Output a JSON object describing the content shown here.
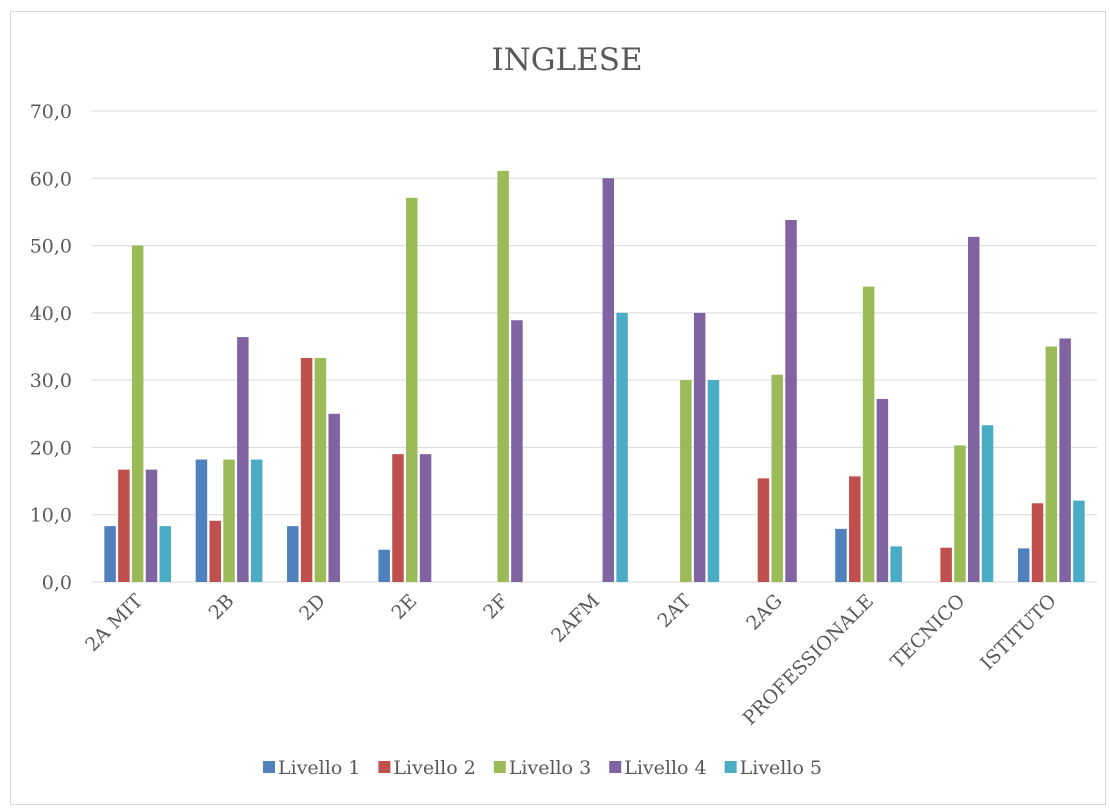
{
  "chart_data": {
    "type": "bar",
    "title": "INGLESE",
    "xlabel": "",
    "ylabel": "",
    "ylim": [
      0,
      70
    ],
    "yticks": [
      "0,0",
      "10,0",
      "20,0",
      "30,0",
      "40,0",
      "50,0",
      "60,0",
      "70,0"
    ],
    "grid": true,
    "legend_position": "bottom",
    "categories": [
      "2A MIT",
      "2B",
      "2D",
      "2E",
      "2F",
      "2AFM",
      "2AT",
      "2AG",
      "PROFESSIONALE",
      "TECNICO",
      "ISTITUTO"
    ],
    "series": [
      {
        "name": "Livello 1",
        "color": "#4f81bd",
        "values": [
          8.3,
          18.2,
          8.3,
          4.8,
          0,
          0,
          0,
          0,
          7.9,
          0,
          5.0
        ]
      },
      {
        "name": "Livello 2",
        "color": "#c0504d",
        "values": [
          16.7,
          9.1,
          33.3,
          19.0,
          0,
          0,
          0,
          15.4,
          15.7,
          5.1,
          11.7
        ]
      },
      {
        "name": "Livello 3",
        "color": "#9bbb59",
        "values": [
          50.0,
          18.2,
          33.3,
          57.1,
          61.1,
          0,
          30.0,
          30.8,
          43.9,
          20.3,
          35.0
        ]
      },
      {
        "name": "Livello 4",
        "color": "#8064a2",
        "values": [
          16.7,
          36.4,
          25.0,
          19.0,
          38.9,
          60.0,
          40.0,
          53.8,
          27.2,
          51.3,
          36.2
        ]
      },
      {
        "name": "Livello 5",
        "color": "#4bacc6",
        "values": [
          8.3,
          18.2,
          0,
          0,
          0,
          40.0,
          30.0,
          0,
          5.3,
          23.3,
          12.1
        ]
      }
    ]
  }
}
